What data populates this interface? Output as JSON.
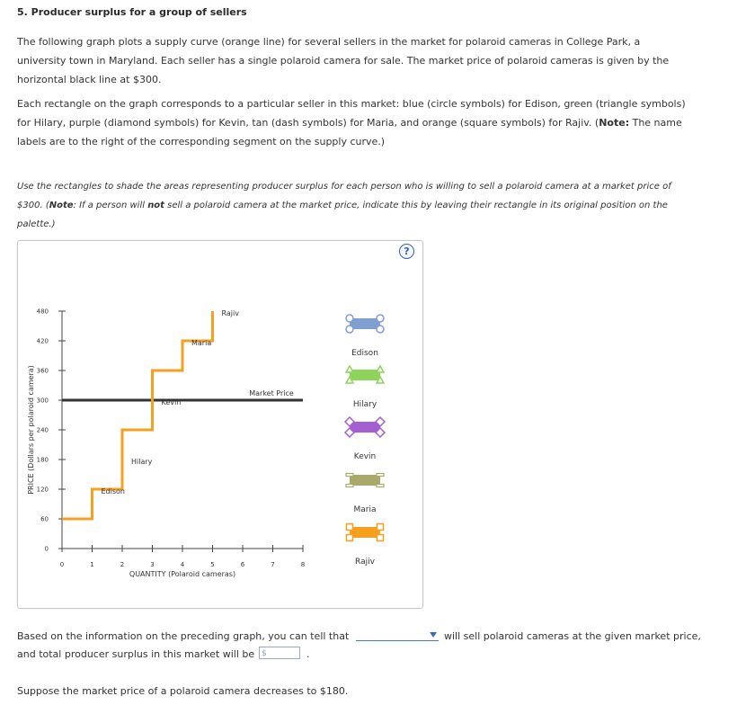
{
  "title": "5. Producer surplus for a group of sellers",
  "intro": {
    "line1": "The following graph plots a supply curve (orange line) for several sellers in the market for polaroid cameras in College Park, a",
    "line2": "university town in Maryland. Each seller has a single polaroid camera for sale. The market price of polaroid cameras is given by the",
    "line3": "horizontal black line at $300."
  },
  "desc": {
    "line1": "Each rectangle on the graph corresponds to a particular seller in this market: blue (circle symbols) for Edison, green (triangle symbols)",
    "line2_pre": "for Hilary, purple (diamond symbols) for Kevin, tan (dash symbols) for Maria, and orange (square symbols) for Rajiv. (",
    "line2_bold": "Note:",
    "line2_post": " The name",
    "line3": "labels are to the right of the corresponding segment on the supply curve.)"
  },
  "instr": {
    "line1": "Use the rectangles to shade the areas representing producer surplus for each person who is willing to sell a polaroid camera at a market price of",
    "line2_pre": "$300. (",
    "line2_b1": "Note",
    "line2_mid": ": If a person will ",
    "line2_b2": "not",
    "line2_post": " sell a polaroid camera at the market price, indicate this by leaving their rectangle in its original position on the",
    "line3": "palette.)"
  },
  "help_label": "?",
  "chart_data": {
    "type": "line",
    "xlabel": "QUANTITY (Polaroid cameras)",
    "ylabel": "PRICE (Dollars per polaroid camera)",
    "xlim": [
      0,
      8
    ],
    "ylim": [
      0,
      480
    ],
    "xticks": [
      "0",
      "1",
      "2",
      "3",
      "4",
      "5",
      "6",
      "7",
      "8"
    ],
    "yticks": [
      "0",
      "60",
      "120",
      "180",
      "240",
      "300",
      "360",
      "420",
      "480"
    ],
    "supply_color": "#F5A01E",
    "market_price": 300,
    "market_price_label": "Market Price",
    "sellers": [
      {
        "name": "Edison",
        "price": 60,
        "x": [
          0,
          1
        ]
      },
      {
        "name": "Hilary",
        "price": 120,
        "x": [
          1,
          2
        ]
      },
      {
        "name": "Kevin",
        "price": 240,
        "x": [
          2,
          3
        ]
      },
      {
        "name": "Maria",
        "price": 360,
        "x": [
          3,
          4
        ]
      },
      {
        "name": "Rajiv",
        "price": 420,
        "x": [
          4,
          5
        ]
      }
    ]
  },
  "palette": [
    {
      "name": "Edison",
      "color": "#7F9FD0",
      "symbol": "circle"
    },
    {
      "name": "Hilary",
      "color": "#8CD45A",
      "symbol": "triangle"
    },
    {
      "name": "Kevin",
      "color": "#A55FD0",
      "symbol": "diamond"
    },
    {
      "name": "Maria",
      "color": "#A9A96C",
      "symbol": "dash"
    },
    {
      "name": "Rajiv",
      "color": "#F5A01E",
      "symbol": "square"
    }
  ],
  "question1": {
    "pre": "Based on the information on the preceding graph, you can tell that",
    "post": "will sell polaroid cameras at the given market price,",
    "line2_pre": "and total producer surplus in this market will be",
    "line2_post": ".",
    "currency_placeholder": "$"
  },
  "question2": "Suppose the market price of a polaroid camera decreases to $180."
}
